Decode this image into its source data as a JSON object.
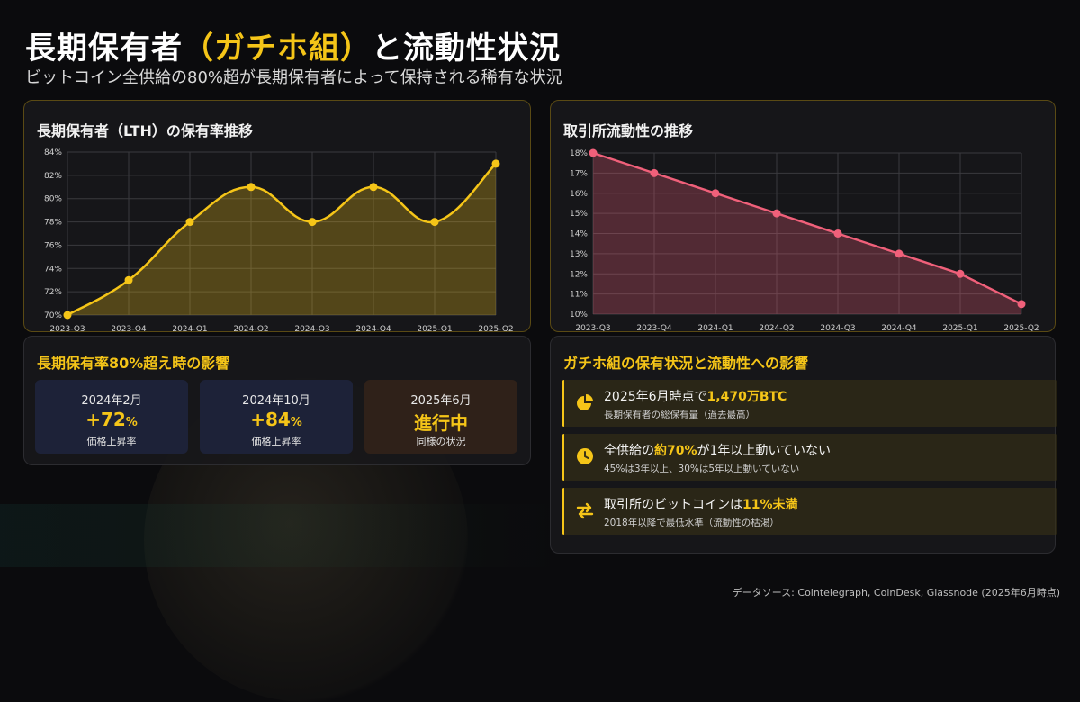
{
  "header": {
    "title_pre": "長期保有者",
    "title_hl": "（ガチホ組）",
    "title_post": "と流動性状況",
    "subtitle": "ビットコイン全供給の80%超が長期保有者によって保持される稀有な状況"
  },
  "colors": {
    "accent": "#f5c518",
    "liquidity": "#f0607a"
  },
  "chart_data": [
    {
      "type": "line",
      "title": "長期保有者（LTH）の保有率推移",
      "categories": [
        "2023-Q3",
        "2023-Q4",
        "2024-Q1",
        "2024-Q2",
        "2024-Q3",
        "2024-Q4",
        "2025-Q1",
        "2025-Q2"
      ],
      "series": [
        {
          "values": [
            70,
            73,
            78,
            81,
            78,
            81,
            78,
            83
          ]
        }
      ],
      "ylim": [
        70,
        84
      ],
      "yticks": [
        "70%",
        "72%",
        "74%",
        "76%",
        "78%",
        "80%",
        "82%",
        "84%"
      ],
      "grid": true,
      "color": "#f5c518"
    },
    {
      "type": "line",
      "title": "取引所流動性の推移",
      "categories": [
        "2023-Q3",
        "2023-Q4",
        "2024-Q1",
        "2024-Q2",
        "2024-Q3",
        "2024-Q4",
        "2025-Q1",
        "2025-Q2"
      ],
      "series": [
        {
          "values": [
            18,
            17,
            16,
            15,
            14,
            13,
            12,
            10.5
          ]
        }
      ],
      "ylim": [
        10,
        18
      ],
      "yticks": [
        "10%",
        "11%",
        "12%",
        "13%",
        "14%",
        "15%",
        "16%",
        "17%",
        "18%"
      ],
      "grid": true,
      "color": "#f0607a"
    }
  ],
  "impact": {
    "title": "長期保有率80%超え時の影響",
    "cards": [
      {
        "date": "2024年2月",
        "value": "+72",
        "unit": "%",
        "caption": "価格上昇率"
      },
      {
        "date": "2024年10月",
        "value": "+84",
        "unit": "%",
        "caption": "価格上昇率"
      },
      {
        "date": "2025年6月",
        "value": "進行中",
        "unit": "",
        "caption": "同様の状況"
      }
    ]
  },
  "status": {
    "title": "ガチホ組の保有状況と流動性への影響",
    "rows": [
      {
        "icon": "pie-chart-icon",
        "pre": "2025年6月時点で",
        "em": "1,470万BTC",
        "post": "",
        "sub": "長期保有者の総保有量（過去最高）"
      },
      {
        "icon": "clock-icon",
        "pre": "全供給の",
        "em": "約70%",
        "post": "が1年以上動いていない",
        "sub": "45%は3年以上、30%は5年以上動いていない"
      },
      {
        "icon": "exchange-arrows-icon",
        "pre": "取引所のビットコインは",
        "em": "11%未満",
        "post": "",
        "sub": "2018年以降で最低水準（流動性の枯渇）"
      }
    ]
  },
  "source": "データソース: Cointelegraph, CoinDesk, Glassnode (2025年6月時点)"
}
